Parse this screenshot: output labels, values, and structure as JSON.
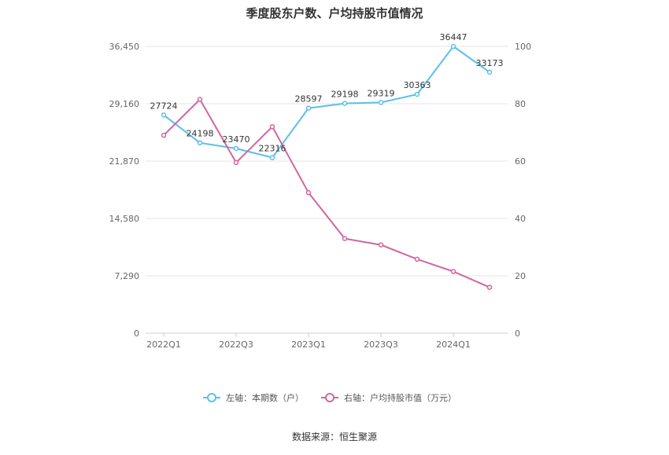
{
  "chart_data": {
    "type": "line",
    "title": "季度股东户数、户均持股市值情况",
    "x": [
      "2022Q1",
      "2022Q2",
      "2022Q3",
      "2022Q4",
      "2023Q1",
      "2023Q2",
      "2023Q3",
      "2023Q4",
      "2024Q1",
      "2024Q2"
    ],
    "x_tick_labels": [
      "2022Q1",
      "",
      "2022Q3",
      "",
      "2023Q1",
      "",
      "2023Q3",
      "",
      "2024Q1",
      ""
    ],
    "y_left": {
      "lim": [
        0,
        36450
      ],
      "ticks": [
        "0",
        "7,290",
        "14,580",
        "21,870",
        "29,160",
        "36,450"
      ]
    },
    "y_right": {
      "lim": [
        0,
        100
      ],
      "ticks": [
        "0",
        "20",
        "40",
        "60",
        "80",
        "100"
      ]
    },
    "grid": true,
    "legend_position": "bottom",
    "series": [
      {
        "name": "左轴：本期数（户）",
        "axis": "left",
        "color": "#5bc0eb",
        "values": [
          27724,
          24198,
          23470,
          22316,
          28597,
          29198,
          29319,
          30363,
          36447,
          33173
        ],
        "labels": [
          "27724",
          "24198",
          "23470",
          "22316",
          "28597",
          "29198",
          "29319",
          "30363",
          "36447",
          "33173"
        ]
      },
      {
        "name": "右轴：户均持股市值（万元）",
        "axis": "right",
        "color": "#d3659f",
        "values": [
          69.0,
          81.5,
          59.5,
          72.0,
          49.0,
          33.0,
          30.8,
          25.8,
          21.5,
          16.0
        ]
      }
    ]
  },
  "source": "数据来源：恒生聚源"
}
